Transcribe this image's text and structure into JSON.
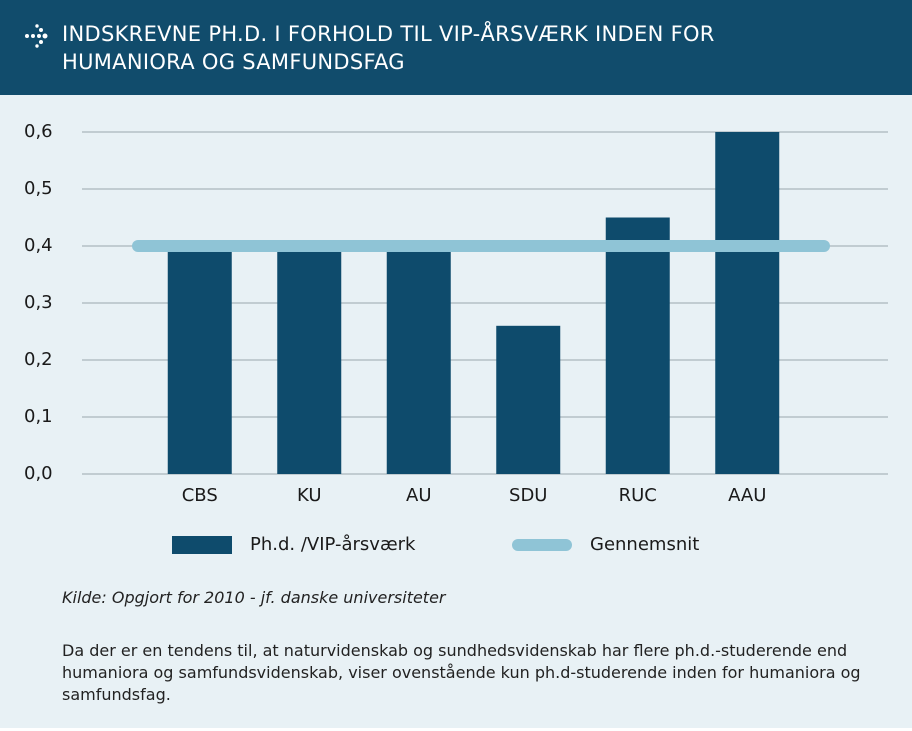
{
  "chart_data": {
    "type": "bar",
    "title_lines": [
      "INDSKREVNE PH.D. I FORHOLD TIL VIP-ÅRSVÆRK INDEN FOR",
      "HUMANIORA OG SAMFUNDSFAG"
    ],
    "categories": [
      "CBS",
      "KU",
      "AU",
      "SDU",
      "RUC",
      "AAU"
    ],
    "series": [
      {
        "name": "Ph.d. /VIP-årsværk",
        "type": "bar",
        "color": "#0e4b6c",
        "values": [
          0.39,
          0.4,
          0.41,
          0.26,
          0.45,
          0.6
        ]
      },
      {
        "name": "Gennemsnit",
        "type": "line",
        "color": "#8fc4d6",
        "values": [
          0.4,
          0.4,
          0.4,
          0.4,
          0.4,
          0.4
        ]
      }
    ],
    "ylim": [
      0,
      0.6
    ],
    "yticks": [
      {
        "value": 0,
        "label": "0,0"
      },
      {
        "value": 0.1,
        "label": "0,1"
      },
      {
        "value": 0.2,
        "label": "0,2"
      },
      {
        "value": 0.3,
        "label": "0,3"
      },
      {
        "value": 0.4,
        "label": "0,4"
      },
      {
        "value": 0.5,
        "label": "0,5"
      },
      {
        "value": 0.6,
        "label": "0,6"
      }
    ],
    "grid": true,
    "source": "Kilde: Opgjort for 2010 - jf. danske universiteter",
    "note": "Da der er en tendens til, at naturvidenskab og sundhedsvidenskab har flere ph.d.-studerende end humaniora og samfundsvidenskab, viser ovenstående kun ph.d-studerende inden for humaniora og samfundsfag."
  }
}
